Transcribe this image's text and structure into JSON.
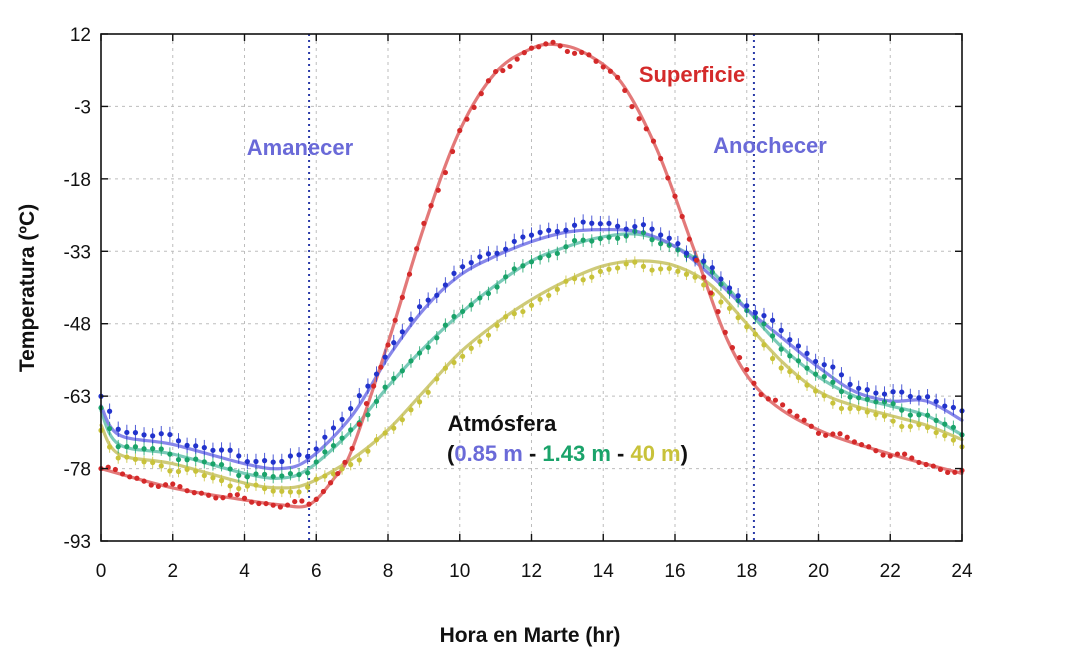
{
  "chart_data": {
    "type": "line",
    "xlabel": "Hora en Marte (hr)",
    "ylabel": "Temperatura (ºC)",
    "xlim": [
      0,
      24
    ],
    "ylim": [
      -93,
      12
    ],
    "xticks": [
      0,
      2,
      4,
      6,
      8,
      10,
      12,
      14,
      16,
      18,
      20,
      22,
      24
    ],
    "yticks": [
      12,
      -3,
      -18,
      -33,
      -48,
      -63,
      -78,
      -93
    ],
    "grid": true,
    "vertical_markers": [
      {
        "x": 5.8,
        "label": "Amanecer"
      },
      {
        "x": 18.2,
        "label": "Anochecer"
      }
    ],
    "annotations": {
      "atmosphere_title": "Atmósfera",
      "open_paren": "(",
      "label_085": "0.85 m",
      "sep1": " - ",
      "label_143": "1.43 m",
      "sep2": " - ",
      "label_40": "40 m",
      "close_paren": ")"
    },
    "colors": {
      "surface": "#d42a2a",
      "surface_line": "#e06a6a",
      "h085": "#2233cc",
      "h085_line": "#7a7ae8",
      "h143": "#1aa36a",
      "h143_line": "#6cc4b0",
      "h40": "#c8c23a",
      "h40_line": "#c9c46a",
      "marker": "#2a3aa8",
      "label_blue": "#6a6ad8"
    },
    "series": [
      {
        "name": "Superficie",
        "x": [
          0,
          2,
          4,
          5,
          5.8,
          6.5,
          7,
          8,
          9,
          10,
          11,
          12,
          12.7,
          13.5,
          14.5,
          15.5,
          16.5,
          17.5,
          18.5,
          20,
          22,
          24
        ],
        "y": [
          -78,
          -82,
          -84.5,
          -85.5,
          -85.5,
          -80,
          -74,
          -52,
          -28,
          -8,
          4,
          9,
          9.8,
          8,
          2,
          -12,
          -32,
          -52,
          -63,
          -70,
          -75,
          -79
        ]
      },
      {
        "name": "0.85 m",
        "x": [
          0,
          0.5,
          2,
          4,
          5,
          5.8,
          7,
          8,
          9,
          10,
          11,
          12,
          13,
          14,
          15,
          16,
          17,
          18,
          19,
          20,
          21,
          22,
          23,
          24
        ],
        "y": [
          -65,
          -71,
          -73,
          -77,
          -78,
          -76,
          -67,
          -55,
          -45,
          -38,
          -34,
          -31,
          -29,
          -28.5,
          -29,
          -32,
          -38,
          -45,
          -51,
          -57,
          -62,
          -64,
          -64,
          -68
        ]
      },
      {
        "name": "1.43 m",
        "x": [
          0,
          0.5,
          2,
          4,
          5,
          5.8,
          7,
          8,
          9,
          10,
          11,
          12,
          13,
          14,
          15,
          16,
          17,
          18,
          19,
          20,
          21,
          22,
          23,
          24
        ],
        "y": [
          -66,
          -73,
          -75,
          -79,
          -80,
          -78,
          -70,
          -61,
          -53,
          -46,
          -40,
          -35,
          -32,
          -30,
          -29.5,
          -32,
          -37,
          -45,
          -53,
          -59,
          -63,
          -65,
          -67,
          -71
        ]
      },
      {
        "name": "40 m",
        "x": [
          0,
          0.5,
          2,
          4,
          5,
          5.8,
          7,
          8,
          9,
          10,
          11,
          12,
          13,
          14,
          15,
          16,
          17,
          18,
          19,
          20,
          21,
          22,
          23,
          24
        ],
        "y": [
          -69,
          -75,
          -77,
          -81,
          -82,
          -81,
          -76,
          -70,
          -62,
          -54,
          -48,
          -43,
          -39,
          -36,
          -35,
          -36,
          -40,
          -48,
          -56,
          -62,
          -65,
          -67,
          -69,
          -72
        ]
      }
    ]
  }
}
